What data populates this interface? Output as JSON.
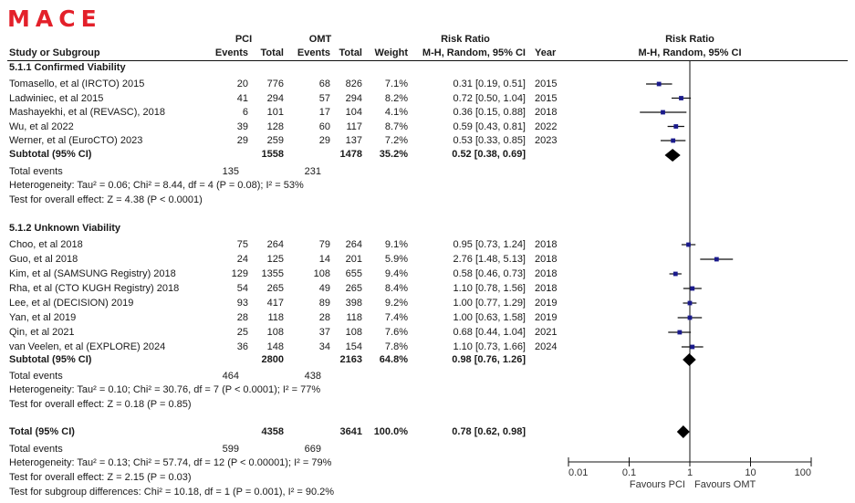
{
  "title": "MACE",
  "header": {
    "study_col": "Study or Subgroup",
    "group1": "PCI",
    "group2": "OMT",
    "events": "Events",
    "total": "Total",
    "weight": "Weight",
    "rr_title": "Risk Ratio",
    "rr_method": "M-H, Random, 95% CI",
    "year": "Year",
    "plot_title": "Risk Ratio",
    "plot_method": "M-H, Random, 95% CI"
  },
  "subgroups": [
    {
      "label": "5.1.1 Confirmed Viability",
      "studies": [
        {
          "name": "Tomasello, et al (IRCTO) 2015",
          "e1": "20",
          "n1": "776",
          "e2": "68",
          "n2": "826",
          "weight": "7.1%",
          "ci_text": "0.31 [0.19, 0.51]",
          "year": "2015"
        },
        {
          "name": "Ladwiniec, et al 2015",
          "e1": "41",
          "n1": "294",
          "e2": "57",
          "n2": "294",
          "weight": "8.2%",
          "ci_text": "0.72 [0.50, 1.04]",
          "year": "2015"
        },
        {
          "name": "Mashayekhi, et al (REVASC), 2018",
          "e1": "6",
          "n1": "101",
          "e2": "17",
          "n2": "104",
          "weight": "4.1%",
          "ci_text": "0.36 [0.15, 0.88]",
          "year": "2018"
        },
        {
          "name": "Wu, et al 2022",
          "e1": "39",
          "n1": "128",
          "e2": "60",
          "n2": "117",
          "weight": "8.7%",
          "ci_text": "0.59 [0.43, 0.81]",
          "year": "2022"
        },
        {
          "name": "Werner, et al (EuroCTO) 2023",
          "e1": "29",
          "n1": "259",
          "e2": "29",
          "n2": "137",
          "weight": "7.2%",
          "ci_text": "0.53 [0.33, 0.85]",
          "year": "2023"
        }
      ],
      "subtotal": {
        "label": "Subtotal (95% CI)",
        "n1": "1558",
        "n2": "1478",
        "weight": "35.2%",
        "ci_text": "0.52 [0.38, 0.69]"
      },
      "total_events": {
        "label": "Total events",
        "e1": "135",
        "e2": "231"
      },
      "heterogeneity": "Heterogeneity: Tau² = 0.06; Chi² = 8.44, df = 4 (P = 0.08); I² = 53%",
      "overall": "Test for overall effect: Z = 4.38 (P < 0.0001)"
    },
    {
      "label": "5.1.2 Unknown Viability",
      "studies": [
        {
          "name": "Choo, et al 2018",
          "e1": "75",
          "n1": "264",
          "e2": "79",
          "n2": "264",
          "weight": "9.1%",
          "ci_text": "0.95 [0.73, 1.24]",
          "year": "2018"
        },
        {
          "name": "Guo, et al 2018",
          "e1": "24",
          "n1": "125",
          "e2": "14",
          "n2": "201",
          "weight": "5.9%",
          "ci_text": "2.76 [1.48, 5.13]",
          "year": "2018"
        },
        {
          "name": "Kim, et al (SAMSUNG Registry) 2018",
          "e1": "129",
          "n1": "1355",
          "e2": "108",
          "n2": "655",
          "weight": "9.4%",
          "ci_text": "0.58 [0.46, 0.73]",
          "year": "2018"
        },
        {
          "name": "Rha, et al (CTO KUGH Registry) 2018",
          "e1": "54",
          "n1": "265",
          "e2": "49",
          "n2": "265",
          "weight": "8.4%",
          "ci_text": "1.10 [0.78, 1.56]",
          "year": "2018"
        },
        {
          "name": "Lee, et al (DECISION) 2019",
          "e1": "93",
          "n1": "417",
          "e2": "89",
          "n2": "398",
          "weight": "9.2%",
          "ci_text": "1.00 [0.77, 1.29]",
          "year": "2019"
        },
        {
          "name": "Yan, et al 2019",
          "e1": "28",
          "n1": "118",
          "e2": "28",
          "n2": "118",
          "weight": "7.4%",
          "ci_text": "1.00 [0.63, 1.58]",
          "year": "2019"
        },
        {
          "name": "Qin, et al 2021",
          "e1": "25",
          "n1": "108",
          "e2": "37",
          "n2": "108",
          "weight": "7.6%",
          "ci_text": "0.68 [0.44, 1.04]",
          "year": "2021"
        },
        {
          "name": "van Veelen, et al (EXPLORE) 2024",
          "e1": "36",
          "n1": "148",
          "e2": "34",
          "n2": "154",
          "weight": "7.8%",
          "ci_text": "1.10 [0.73, 1.66]",
          "year": "2024"
        }
      ],
      "subtotal": {
        "label": "Subtotal (95% CI)",
        "n1": "2800",
        "n2": "2163",
        "weight": "64.8%",
        "ci_text": "0.98 [0.76, 1.26]"
      },
      "total_events": {
        "label": "Total events",
        "e1": "464",
        "e2": "438"
      },
      "heterogeneity": "Heterogeneity: Tau² = 0.10; Chi² = 30.76, df = 7 (P < 0.0001); I² = 77%",
      "overall": "Test for overall effect: Z = 0.18 (P = 0.85)"
    }
  ],
  "total": {
    "label": "Total (95% CI)",
    "n1": "4358",
    "n2": "3641",
    "weight": "100.0%",
    "ci_text": "0.78 [0.62, 0.98]",
    "total_events": {
      "label": "Total events",
      "e1": "599",
      "e2": "669"
    },
    "heterogeneity": "Heterogeneity: Tau² = 0.13; Chi² = 57.74, df = 12 (P < 0.00001); I² = 79%",
    "overall": "Test for overall effect: Z = 2.15 (P = 0.03)",
    "subgroup_diff": "Test for subgroup differences: Chi² = 10.18, df = 1 (P = 0.001), I² = 90.2%"
  },
  "axis": {
    "ticks": [
      "0.01",
      "0.1",
      "1",
      "10",
      "100"
    ],
    "favours_left": "Favours PCI",
    "favours_right": "Favours OMT"
  },
  "colors": {
    "title": "#e3202a",
    "marker": "#1a1a8c",
    "line": "#111111"
  },
  "chart_data": {
    "type": "scatter",
    "title": "MACE",
    "xlabel": "Risk Ratio (M-H, Random, 95% CI)",
    "xscale": "log",
    "xlim": [
      0.01,
      100
    ],
    "xticks": [
      0.01,
      0.1,
      1,
      10,
      100
    ],
    "left_label": "Favours PCI",
    "right_label": "Favours OMT",
    "points": [
      {
        "study": "Tomasello, et al (IRCTO) 2015",
        "rr": 0.31,
        "lo": 0.19,
        "hi": 0.51,
        "weight": 7.1
      },
      {
        "study": "Ladwiniec, et al 2015",
        "rr": 0.72,
        "lo": 0.5,
        "hi": 1.04,
        "weight": 8.2
      },
      {
        "study": "Mashayekhi, et al (REVASC), 2018",
        "rr": 0.36,
        "lo": 0.15,
        "hi": 0.88,
        "weight": 4.1
      },
      {
        "study": "Wu, et al 2022",
        "rr": 0.59,
        "lo": 0.43,
        "hi": 0.81,
        "weight": 8.7
      },
      {
        "study": "Werner, et al (EuroCTO) 2023",
        "rr": 0.53,
        "lo": 0.33,
        "hi": 0.85,
        "weight": 7.2
      },
      {
        "study": "Subtotal 5.1.1",
        "rr": 0.52,
        "lo": 0.38,
        "hi": 0.69,
        "diamond": true
      },
      {
        "study": "Choo, et al 2018",
        "rr": 0.95,
        "lo": 0.73,
        "hi": 1.24,
        "weight": 9.1
      },
      {
        "study": "Guo, et al 2018",
        "rr": 2.76,
        "lo": 1.48,
        "hi": 5.13,
        "weight": 5.9
      },
      {
        "study": "Kim, et al (SAMSUNG Registry) 2018",
        "rr": 0.58,
        "lo": 0.46,
        "hi": 0.73,
        "weight": 9.4
      },
      {
        "study": "Rha, et al (CTO KUGH Registry) 2018",
        "rr": 1.1,
        "lo": 0.78,
        "hi": 1.56,
        "weight": 8.4
      },
      {
        "study": "Lee, et al (DECISION) 2019",
        "rr": 1.0,
        "lo": 0.77,
        "hi": 1.29,
        "weight": 9.2
      },
      {
        "study": "Yan, et al 2019",
        "rr": 1.0,
        "lo": 0.63,
        "hi": 1.58,
        "weight": 7.4
      },
      {
        "study": "Qin, et al 2021",
        "rr": 0.68,
        "lo": 0.44,
        "hi": 1.04,
        "weight": 7.6
      },
      {
        "study": "van Veelen, et al (EXPLORE) 2024",
        "rr": 1.1,
        "lo": 0.73,
        "hi": 1.66,
        "weight": 7.8
      },
      {
        "study": "Subtotal 5.1.2",
        "rr": 0.98,
        "lo": 0.76,
        "hi": 1.26,
        "diamond": true
      },
      {
        "study": "Total",
        "rr": 0.78,
        "lo": 0.62,
        "hi": 0.98,
        "diamond": true
      }
    ]
  }
}
